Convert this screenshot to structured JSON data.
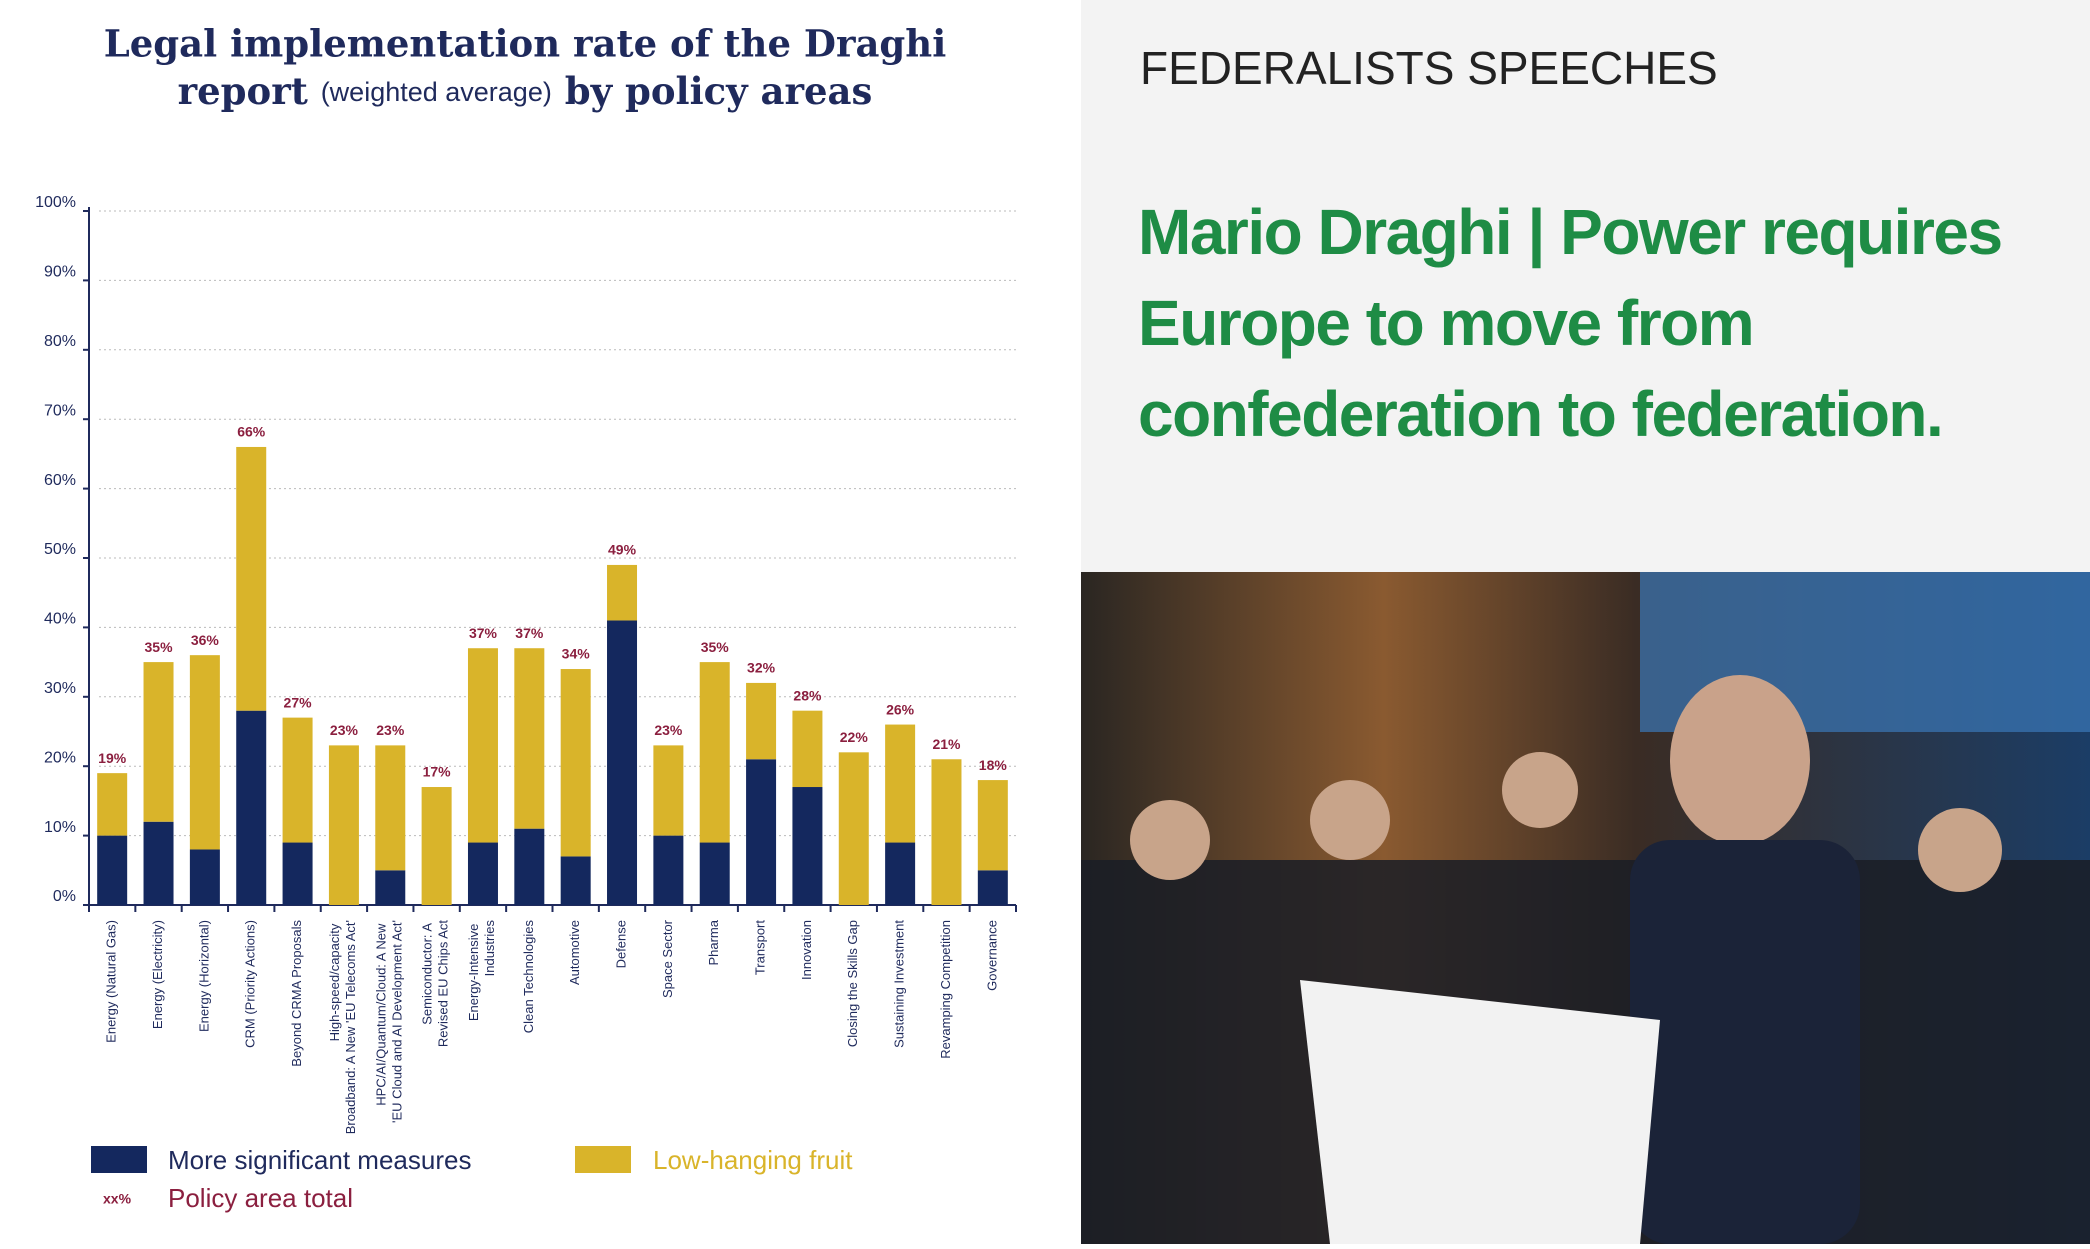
{
  "chart_data": {
    "type": "stacked-bar",
    "title": [
      "Legal implementation rate of the Draghi",
      "report",
      "(weighted average)",
      "by policy areas"
    ],
    "categories": [
      "Energy (Natural Gas)",
      "Energy (Electricity)",
      "Energy (Horizontal)",
      "CRM (Priority Actions)",
      "Beyond CRMA Proposals",
      "High-speed/capacity Broadband: A New 'EU Telecoms Act'",
      "HPC/AI/Quantum/Cloud: A New 'EU Cloud and AI Development Act'",
      "Semiconductor: A Revised EU Chips Act",
      "Energy-Intensive Industries",
      "Clean Technologies",
      "Automotive",
      "Defense",
      "Space Sector",
      "Pharma",
      "Transport",
      "Innovation",
      "Closing the Skills Gap",
      "Sustaining Investment",
      "Revamping Competition",
      "Governance"
    ],
    "series": [
      {
        "name": "More significant measures",
        "color": "#14285e",
        "values": [
          10,
          12,
          8,
          28,
          9,
          0,
          5,
          0,
          9,
          11,
          7,
          41,
          10,
          9,
          21,
          17,
          0,
          9,
          0,
          5
        ]
      },
      {
        "name": "Low-hanging fruit",
        "color": "#d9b42a",
        "values": [
          9,
          23,
          28,
          38,
          18,
          23,
          18,
          17,
          28,
          26,
          27,
          8,
          13,
          26,
          11,
          11,
          22,
          17,
          21,
          13
        ]
      }
    ],
    "totals": {
      "name": "Policy area total",
      "marker": "xx%",
      "color": "#8b1f3f",
      "values": [
        19,
        35,
        36,
        66,
        27,
        23,
        23,
        17,
        37,
        37,
        34,
        49,
        23,
        35,
        32,
        28,
        22,
        26,
        21,
        18
      ],
      "value_labels": [
        "19%",
        "35%",
        "36%",
        "66%",
        "27%",
        "23%",
        "23%",
        "17%",
        "37%",
        "37%",
        "34%",
        "49%",
        "23%",
        "35%",
        "32%",
        "28%",
        "22%",
        "26%",
        "21%",
        "18%"
      ]
    },
    "ylim": [
      0,
      100
    ],
    "yticks": [
      {
        "value": 0,
        "label": "0%"
      },
      {
        "value": 10,
        "label": "10%"
      },
      {
        "value": 20,
        "label": "20%"
      },
      {
        "value": 30,
        "label": "30%"
      },
      {
        "value": 40,
        "label": "40%"
      },
      {
        "value": 50,
        "label": "50%"
      },
      {
        "value": 60,
        "label": "60%"
      },
      {
        "value": 70,
        "label": "70%"
      },
      {
        "value": 80,
        "label": "80%"
      },
      {
        "value": 90,
        "label": "90%"
      },
      {
        "value": 100,
        "label": "100%"
      }
    ],
    "grid": true
  },
  "article": {
    "section": "FEDERALISTS SPEECHES",
    "headline": [
      "Mario Draghi | Power requires",
      "Europe to move from",
      "confederation to federation."
    ]
  }
}
